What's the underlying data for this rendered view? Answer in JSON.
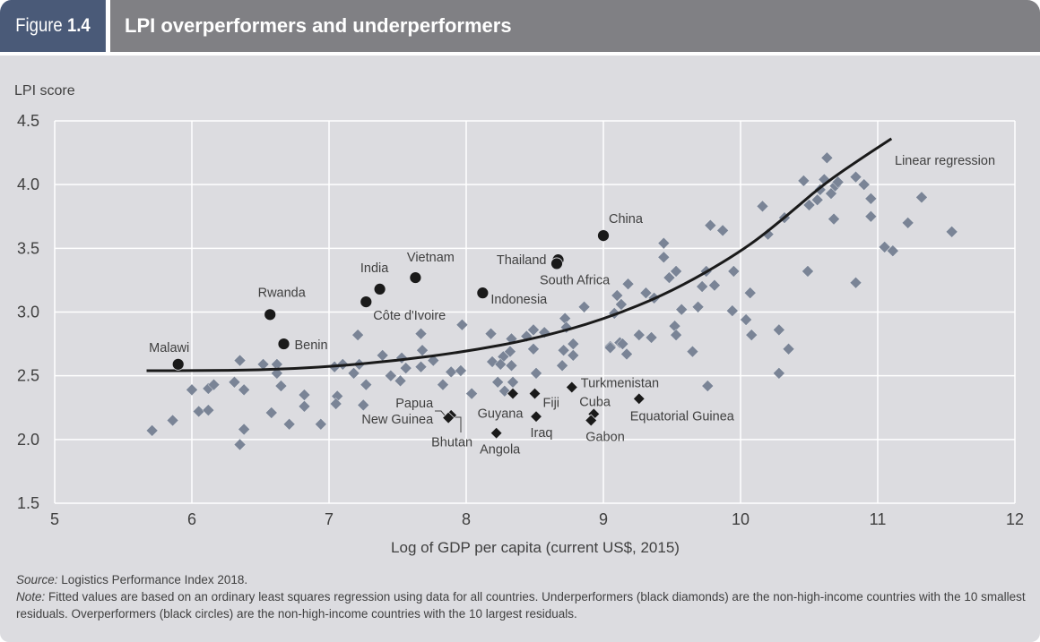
{
  "header": {
    "figure_label": "Figure",
    "figure_number": "1.4",
    "title": "LPI overperformers and underperformers"
  },
  "footer": {
    "source_label": "Source:",
    "source_text": "Logistics Performance Index 2018.",
    "note_label": "Note:",
    "note_text": "Fitted values are based on an ordinary least squares regression using data for all countries. Underperformers (black diamonds) are the non-high-income countries with the 10 smallest residuals. Overperformers (black circles) are the non-high-income countries with the 10 largest residuals."
  },
  "colors": {
    "figure_tab": "#4a5a78",
    "title_bar": "#808084",
    "panel_bg": "#dcdce0",
    "gray_diamond": "#7a8496",
    "black_marker": "#1a1a1a",
    "grid": "#ffffff"
  },
  "chart_data": {
    "type": "scatter",
    "title": "LPI overperformers and underperformers",
    "xlabel": "Log of GDP per capita (current US$, 2015)",
    "ylabel": "LPI score",
    "xlim": [
      5,
      12
    ],
    "ylim": [
      1.5,
      4.5
    ],
    "xticks": [
      "5",
      "6",
      "7",
      "8",
      "9",
      "10",
      "11",
      "12"
    ],
    "yticks": [
      "1.5",
      "2.0",
      "2.5",
      "3.0",
      "3.5",
      "4.0",
      "4.5"
    ],
    "grid": true,
    "regression_label": "Linear regression",
    "regression_curve": [
      [
        5.67,
        2.54
      ],
      [
        6.0,
        2.54
      ],
      [
        6.5,
        2.545
      ],
      [
        7.0,
        2.57
      ],
      [
        7.5,
        2.62
      ],
      [
        8.0,
        2.69
      ],
      [
        8.5,
        2.79
      ],
      [
        9.0,
        2.94
      ],
      [
        9.5,
        3.16
      ],
      [
        10.0,
        3.47
      ],
      [
        10.3,
        3.72
      ],
      [
        10.6,
        4.0
      ],
      [
        10.9,
        4.22
      ],
      [
        11.1,
        4.36
      ]
    ],
    "series": [
      {
        "name": "All countries",
        "marker": "gray-diamond",
        "points": [
          [
            5.71,
            2.07
          ],
          [
            5.86,
            2.15
          ],
          [
            6.0,
            2.39
          ],
          [
            6.05,
            2.22
          ],
          [
            6.12,
            2.23
          ],
          [
            6.12,
            2.4
          ],
          [
            6.16,
            2.43
          ],
          [
            6.31,
            2.45
          ],
          [
            6.35,
            2.62
          ],
          [
            6.38,
            2.39
          ],
          [
            6.38,
            2.08
          ],
          [
            6.35,
            1.96
          ],
          [
            6.52,
            2.59
          ],
          [
            6.58,
            2.21
          ],
          [
            6.62,
            2.59
          ],
          [
            6.62,
            2.52
          ],
          [
            6.65,
            2.42
          ],
          [
            6.71,
            2.12
          ],
          [
            6.82,
            2.35
          ],
          [
            6.82,
            2.26
          ],
          [
            6.94,
            2.12
          ],
          [
            7.04,
            2.57
          ],
          [
            7.1,
            2.59
          ],
          [
            7.18,
            2.52
          ],
          [
            7.22,
            2.59
          ],
          [
            7.21,
            2.82
          ],
          [
            7.27,
            2.43
          ],
          [
            7.06,
            2.34
          ],
          [
            7.05,
            2.28
          ],
          [
            7.25,
            2.27
          ],
          [
            7.39,
            2.66
          ],
          [
            7.45,
            2.5
          ],
          [
            7.52,
            2.46
          ],
          [
            7.53,
            2.64
          ],
          [
            7.56,
            2.56
          ],
          [
            7.67,
            2.83
          ],
          [
            7.68,
            2.7
          ],
          [
            7.67,
            2.57
          ],
          [
            7.76,
            2.62
          ],
          [
            7.83,
            2.43
          ],
          [
            7.89,
            2.53
          ],
          [
            7.96,
            2.54
          ],
          [
            7.97,
            2.9
          ],
          [
            8.04,
            2.36
          ],
          [
            8.18,
            2.83
          ],
          [
            8.33,
            2.79
          ],
          [
            8.44,
            2.81
          ],
          [
            8.49,
            2.86
          ],
          [
            8.57,
            2.84
          ],
          [
            8.32,
            2.69
          ],
          [
            8.49,
            2.71
          ],
          [
            8.27,
            2.65
          ],
          [
            8.19,
            2.61
          ],
          [
            8.25,
            2.59
          ],
          [
            8.33,
            2.58
          ],
          [
            8.23,
            2.45
          ],
          [
            8.34,
            2.45
          ],
          [
            8.28,
            2.38
          ],
          [
            8.51,
            2.52
          ],
          [
            8.71,
            2.7
          ],
          [
            8.78,
            2.75
          ],
          [
            8.78,
            2.66
          ],
          [
            8.7,
            2.58
          ],
          [
            8.72,
            2.95
          ],
          [
            8.73,
            2.88
          ],
          [
            8.86,
            3.04
          ],
          [
            9.05,
            2.73
          ],
          [
            9.12,
            2.76
          ],
          [
            9.17,
            2.67
          ],
          [
            9.26,
            2.82
          ],
          [
            9.08,
            2.99
          ],
          [
            9.13,
            3.06
          ],
          [
            9.1,
            3.13
          ],
          [
            9.18,
            3.22
          ],
          [
            9.31,
            3.15
          ],
          [
            9.37,
            3.11
          ],
          [
            9.14,
            2.75
          ],
          [
            9.05,
            2.72
          ],
          [
            9.35,
            2.8
          ],
          [
            9.52,
            2.89
          ],
          [
            9.53,
            2.82
          ],
          [
            9.57,
            3.02
          ],
          [
            9.69,
            3.04
          ],
          [
            9.65,
            2.69
          ],
          [
            9.44,
            3.43
          ],
          [
            9.44,
            3.54
          ],
          [
            9.53,
            3.32
          ],
          [
            9.48,
            3.27
          ],
          [
            9.72,
            3.2
          ],
          [
            9.81,
            3.21
          ],
          [
            9.75,
            3.32
          ],
          [
            9.95,
            3.32
          ],
          [
            9.78,
            3.68
          ],
          [
            9.87,
            3.64
          ],
          [
            9.76,
            2.42
          ],
          [
            9.94,
            3.01
          ],
          [
            10.04,
            2.94
          ],
          [
            10.08,
            2.82
          ],
          [
            10.07,
            3.15
          ],
          [
            10.28,
            2.86
          ],
          [
            10.35,
            2.71
          ],
          [
            10.28,
            2.52
          ],
          [
            10.2,
            3.61
          ],
          [
            10.16,
            3.83
          ],
          [
            10.32,
            3.74
          ],
          [
            10.49,
            3.32
          ],
          [
            10.46,
            4.03
          ],
          [
            10.63,
            4.21
          ],
          [
            10.61,
            4.04
          ],
          [
            10.58,
            3.96
          ],
          [
            10.56,
            3.88
          ],
          [
            10.5,
            3.84
          ],
          [
            10.66,
            3.93
          ],
          [
            10.69,
            3.99
          ],
          [
            10.71,
            4.02
          ],
          [
            10.68,
            3.73
          ],
          [
            10.84,
            4.06
          ],
          [
            10.9,
            4.0
          ],
          [
            10.95,
            3.89
          ],
          [
            10.95,
            3.75
          ],
          [
            10.84,
            3.23
          ],
          [
            11.05,
            3.51
          ],
          [
            11.11,
            3.48
          ],
          [
            11.22,
            3.7
          ],
          [
            11.32,
            3.9
          ],
          [
            11.54,
            3.63
          ]
        ]
      },
      {
        "name": "Overperformers",
        "marker": "black-circle",
        "points": [
          {
            "label": "Malawi",
            "x": 5.9,
            "y": 2.59
          },
          {
            "label": "Rwanda",
            "x": 6.57,
            "y": 2.98
          },
          {
            "label": "Benin",
            "x": 6.67,
            "y": 2.75
          },
          {
            "label": "India",
            "x": 7.37,
            "y": 3.18
          },
          {
            "label": "Côte d'Ivoire",
            "x": 7.27,
            "y": 3.08
          },
          {
            "label": "Vietnam",
            "x": 7.63,
            "y": 3.27
          },
          {
            "label": "Indonesia",
            "x": 8.12,
            "y": 3.15
          },
          {
            "label": "Thailand",
            "x": 8.67,
            "y": 3.41
          },
          {
            "label": "South Africa",
            "x": 8.66,
            "y": 3.38
          },
          {
            "label": "China",
            "x": 9.0,
            "y": 3.6
          }
        ]
      },
      {
        "name": "Underperformers",
        "marker": "black-diamond",
        "points": [
          {
            "label": "Papua New Guinea",
            "x": 7.89,
            "y": 2.19
          },
          {
            "label": "Bhutan",
            "x": 7.87,
            "y": 2.17
          },
          {
            "label": "Angola",
            "x": 8.22,
            "y": 2.05
          },
          {
            "label": "Guyana",
            "x": 8.34,
            "y": 2.36
          },
          {
            "label": "Fiji",
            "x": 8.5,
            "y": 2.36
          },
          {
            "label": "Iraq",
            "x": 8.51,
            "y": 2.18
          },
          {
            "label": "Turkmenistan",
            "x": 8.77,
            "y": 2.41
          },
          {
            "label": "Cuba",
            "x": 8.93,
            "y": 2.2
          },
          {
            "label": "Gabon",
            "x": 8.91,
            "y": 2.15
          },
          {
            "label": "Equatorial Guinea",
            "x": 9.26,
            "y": 2.32
          }
        ]
      }
    ]
  }
}
